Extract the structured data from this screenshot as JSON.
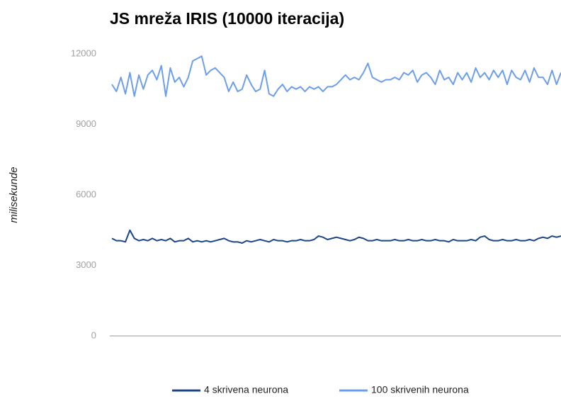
{
  "chart_data": {
    "type": "line",
    "title": "JS mreža IRIS (10000 iteracija)",
    "y_label": "milisekunde",
    "ylim": [
      0,
      12000
    ],
    "yticks": [
      0,
      3000,
      6000,
      9000,
      12000
    ],
    "grid": false,
    "legend": "bottom",
    "series": [
      {
        "name": "4 skrivena neurona",
        "color": "#1c4587",
        "values": [
          4150,
          4050,
          4050,
          4000,
          4500,
          4150,
          4050,
          4100,
          4050,
          4150,
          4050,
          4100,
          4050,
          4150,
          4000,
          4050,
          4050,
          4150,
          4000,
          4050,
          4000,
          4050,
          4000,
          4050,
          4100,
          4150,
          4050,
          4000,
          4000,
          3950,
          4050,
          4000,
          4050,
          4100,
          4050,
          4000,
          4100,
          4050,
          4050,
          4000,
          4050,
          4050,
          4100,
          4050,
          4050,
          4100,
          4250,
          4200,
          4100,
          4150,
          4200,
          4150,
          4100,
          4050,
          4100,
          4200,
          4150,
          4050,
          4050,
          4100,
          4050,
          4050,
          4050,
          4100,
          4050,
          4050,
          4100,
          4050,
          4050,
          4100,
          4050,
          4050,
          4100,
          4050,
          4050,
          4000,
          4100,
          4050,
          4050,
          4050,
          4100,
          4050,
          4200,
          4250,
          4100,
          4050,
          4050,
          4100,
          4050,
          4050,
          4100,
          4050,
          4050,
          4100,
          4050,
          4150,
          4200,
          4150,
          4250,
          4200,
          4250
        ]
      },
      {
        "name": "100 skrivenih neurona",
        "color": "#6d9eeb",
        "values": [
          10700,
          10400,
          11000,
          10300,
          11200,
          10200,
          11100,
          10500,
          11100,
          11300,
          10900,
          11500,
          10200,
          11400,
          10800,
          11000,
          10600,
          11000,
          11700,
          11800,
          11900,
          11100,
          11300,
          11400,
          11200,
          11000,
          10400,
          10800,
          10400,
          10500,
          11100,
          10700,
          10400,
          10500,
          11300,
          10300,
          10200,
          10500,
          10700,
          10400,
          10600,
          10500,
          10600,
          10400,
          10600,
          10500,
          10600,
          10400,
          10600,
          10600,
          10700,
          10900,
          11100,
          10900,
          11000,
          10900,
          11200,
          11600,
          11000,
          10900,
          10800,
          10900,
          10900,
          11000,
          10900,
          11200,
          11100,
          11300,
          10800,
          11100,
          11200,
          11000,
          10700,
          11300,
          10900,
          11000,
          10700,
          11200,
          10900,
          11200,
          10800,
          11400,
          11000,
          11200,
          10900,
          11300,
          11000,
          11300,
          10700,
          11300,
          11000,
          10900,
          11300,
          10800,
          11400,
          11000,
          11000,
          10700,
          11300,
          10700,
          11200
        ]
      }
    ]
  }
}
